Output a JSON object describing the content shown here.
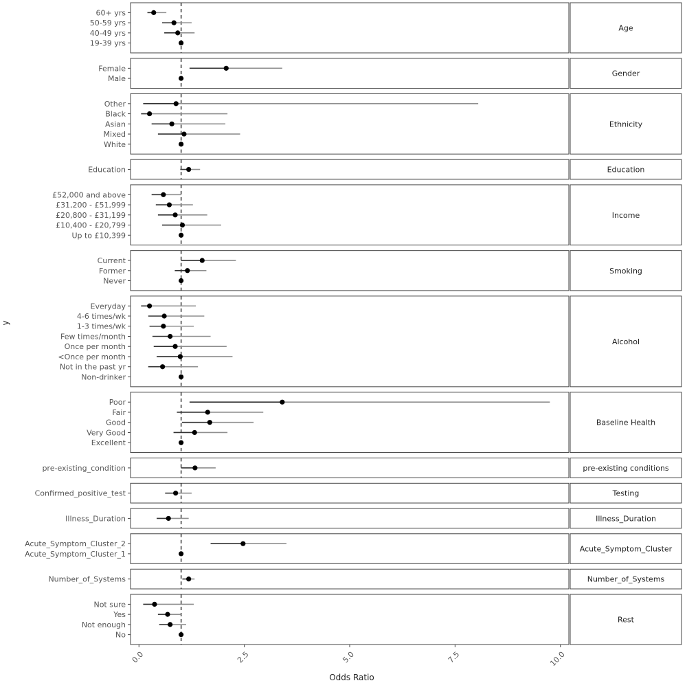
{
  "chart_data": {
    "type": "forest",
    "xlabel": "Odds Ratio",
    "ylabel": "y",
    "xlim": [
      -0.2,
      10.2
    ],
    "xticks": [
      {
        "value": 0,
        "label": "0.0"
      },
      {
        "value": 2.5,
        "label": "2.5"
      },
      {
        "value": 5,
        "label": "5.0"
      },
      {
        "value": 7.5,
        "label": "7.5"
      },
      {
        "value": 10,
        "label": "10.0"
      }
    ],
    "reference_line": 1,
    "panels": [
      {
        "group": "Age",
        "rows": [
          {
            "label": "60+ yrs",
            "or": 0.35,
            "lo": 0.2,
            "hi": 0.65
          },
          {
            "label": "50-59 yrs",
            "or": 0.83,
            "lo": 0.55,
            "hi": 1.25
          },
          {
            "label": "40-49 yrs",
            "or": 0.92,
            "lo": 0.6,
            "hi": 1.32
          },
          {
            "label": "19-39 yrs",
            "or": 1.0,
            "lo": 1.0,
            "hi": 1.0
          }
        ]
      },
      {
        "group": "Gender",
        "rows": [
          {
            "label": "Female",
            "or": 2.07,
            "lo": 1.2,
            "hi": 3.4
          },
          {
            "label": "Male",
            "or": 1.0,
            "lo": 1.0,
            "hi": 1.0
          }
        ]
      },
      {
        "group": "Ethnicity",
        "rows": [
          {
            "label": "Other",
            "or": 0.88,
            "lo": 0.1,
            "hi": 8.05
          },
          {
            "label": "Black",
            "or": 0.25,
            "lo": 0.05,
            "hi": 2.1
          },
          {
            "label": "Asian",
            "or": 0.78,
            "lo": 0.3,
            "hi": 2.05
          },
          {
            "label": "Mixed",
            "or": 1.07,
            "lo": 0.45,
            "hi": 2.4
          },
          {
            "label": "White",
            "or": 1.0,
            "lo": 1.0,
            "hi": 1.0
          }
        ]
      },
      {
        "group": "Education",
        "rows": [
          {
            "label": "Education",
            "or": 1.18,
            "lo": 0.98,
            "hi": 1.45
          }
        ]
      },
      {
        "group": "Income",
        "rows": [
          {
            "label": "£52,000 and above",
            "or": 0.58,
            "lo": 0.3,
            "hi": 1.0
          },
          {
            "label": "£31,200 - £51,999",
            "or": 0.72,
            "lo": 0.4,
            "hi": 1.28
          },
          {
            "label": "£20,800 - £31,199",
            "or": 0.86,
            "lo": 0.45,
            "hi": 1.62
          },
          {
            "label": "£10,400 - £20,799",
            "or": 1.03,
            "lo": 0.55,
            "hi": 1.95
          },
          {
            "label": "Up to £10,399",
            "or": 1.0,
            "lo": 1.0,
            "hi": 1.0
          }
        ]
      },
      {
        "group": "Smoking",
        "rows": [
          {
            "label": "Current",
            "or": 1.5,
            "lo": 1.0,
            "hi": 2.3
          },
          {
            "label": "Former",
            "or": 1.15,
            "lo": 0.85,
            "hi": 1.6
          },
          {
            "label": "Never",
            "or": 1.0,
            "lo": 1.0,
            "hi": 1.0
          }
        ]
      },
      {
        "group": "Alcohol",
        "rows": [
          {
            "label": "Everyday",
            "or": 0.25,
            "lo": 0.05,
            "hi": 1.35
          },
          {
            "label": "4-6 times/wk",
            "or": 0.6,
            "lo": 0.22,
            "hi": 1.55
          },
          {
            "label": "1-3 times/wk",
            "or": 0.58,
            "lo": 0.25,
            "hi": 1.3
          },
          {
            "label": "Few times/month",
            "or": 0.74,
            "lo": 0.32,
            "hi": 1.7
          },
          {
            "label": "Once per month",
            "or": 0.86,
            "lo": 0.35,
            "hi": 2.08
          },
          {
            "label": "<Once per month",
            "or": 0.98,
            "lo": 0.42,
            "hi": 2.22
          },
          {
            "label": "Not in the past yr",
            "or": 0.56,
            "lo": 0.22,
            "hi": 1.4
          },
          {
            "label": "Non-drinker",
            "or": 1.0,
            "lo": 1.0,
            "hi": 1.0
          }
        ]
      },
      {
        "group": "Baseline Health",
        "rows": [
          {
            "label": "Poor",
            "or": 3.4,
            "lo": 1.2,
            "hi": 9.75
          },
          {
            "label": "Fair",
            "or": 1.63,
            "lo": 0.9,
            "hi": 2.95
          },
          {
            "label": "Good",
            "or": 1.68,
            "lo": 1.02,
            "hi": 2.72
          },
          {
            "label": "Very Good",
            "or": 1.32,
            "lo": 0.82,
            "hi": 2.1
          },
          {
            "label": "Excellent",
            "or": 1.0,
            "lo": 1.0,
            "hi": 1.0
          }
        ]
      },
      {
        "group": "pre-existing conditions",
        "rows": [
          {
            "label": "pre-existing_condition",
            "or": 1.33,
            "lo": 1.0,
            "hi": 1.82
          }
        ]
      },
      {
        "group": "Testing",
        "rows": [
          {
            "label": "Confirmed_positive_test",
            "or": 0.87,
            "lo": 0.62,
            "hi": 1.25
          }
        ]
      },
      {
        "group": "Illness_Duration",
        "rows": [
          {
            "label": "Illness_Duration",
            "or": 0.7,
            "lo": 0.42,
            "hi": 1.18
          }
        ]
      },
      {
        "group": "Acute_Symptom_Cluster",
        "rows": [
          {
            "label": "Acute_Symptom_Cluster_2",
            "or": 2.47,
            "lo": 1.7,
            "hi": 3.5
          },
          {
            "label": "Acute_Symptom_Cluster_1",
            "or": 1.0,
            "lo": 1.0,
            "hi": 1.0
          }
        ]
      },
      {
        "group": "Number_of_Systems",
        "rows": [
          {
            "label": "Number_of_Systems",
            "or": 1.18,
            "lo": 1.03,
            "hi": 1.32
          }
        ]
      },
      {
        "group": "Rest",
        "rows": [
          {
            "label": "Not sure",
            "or": 0.37,
            "lo": 0.1,
            "hi": 1.3
          },
          {
            "label": "Yes",
            "or": 0.68,
            "lo": 0.45,
            "hi": 1.0
          },
          {
            "label": "Not enough",
            "or": 0.74,
            "lo": 0.48,
            "hi": 1.12
          },
          {
            "label": "No",
            "or": 1.0,
            "lo": 1.0,
            "hi": 1.0
          }
        ]
      }
    ]
  }
}
